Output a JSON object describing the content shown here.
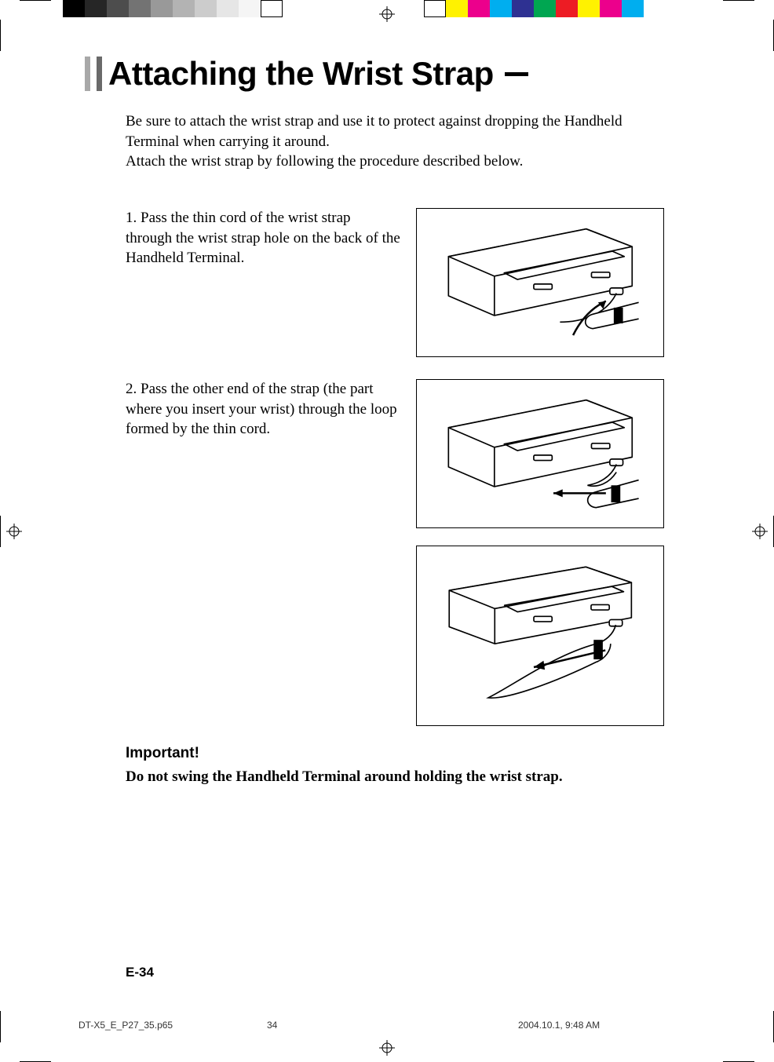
{
  "print_marks": {
    "left_color_bar": [
      "#000000",
      "#262626",
      "#4d4d4d",
      "#737373",
      "#999999",
      "#b3b3b3",
      "#cccccc",
      "#e6e6e6",
      "#f5f5f5",
      "#ffffff"
    ],
    "right_color_bar": [
      "#ffffff",
      "#fff200",
      "#ec008c",
      "#00aeef",
      "#2e3192",
      "#00a651",
      "#ed1c24",
      "#fff200",
      "#ec008c",
      "#00aeef"
    ],
    "reg_mark_stroke": "#000000"
  },
  "title": "Attaching the Wrist Strap",
  "intro_line1": "Be sure to attach the wrist strap and use it to protect against dropping the Handheld Terminal when carrying it around.",
  "intro_line2": "Attach the wrist strap by following the procedure described below.",
  "steps": [
    {
      "num": "1.",
      "text": "Pass the thin cord of the wrist strap through the wrist strap hole on the back of the Handheld Terminal."
    },
    {
      "num": "2.",
      "text": "Pass the other end of the strap (the part where you insert your wrist) through the loop formed by the thin cord."
    }
  ],
  "important_heading": "Important!",
  "important_text": "Do not swing the Handheld Terminal around holding the wrist strap.",
  "page_number": "E-34",
  "footer": {
    "filename": "DT-X5_E_P27_35.p65",
    "page": "34",
    "datetime": "2004.10.1, 9:48 AM"
  },
  "illustration_colors": {
    "stroke": "#000000",
    "fill": "#ffffff"
  }
}
